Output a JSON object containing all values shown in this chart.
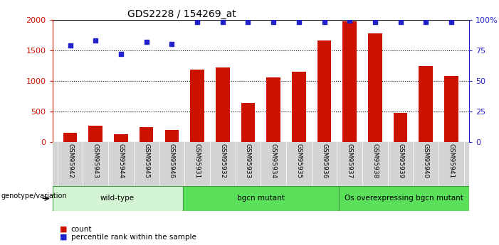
{
  "title": "GDS2228 / 154269_at",
  "samples": [
    "GSM95942",
    "GSM95943",
    "GSM95944",
    "GSM95945",
    "GSM95946",
    "GSM95931",
    "GSM95932",
    "GSM95933",
    "GSM95934",
    "GSM95935",
    "GSM95936",
    "GSM95937",
    "GSM95938",
    "GSM95939",
    "GSM95940",
    "GSM95941"
  ],
  "counts": [
    155,
    270,
    125,
    240,
    195,
    1185,
    1215,
    635,
    1060,
    1145,
    1660,
    1975,
    1780,
    475,
    1240,
    1080
  ],
  "percentiles": [
    79,
    83,
    72,
    82,
    80,
    98,
    98,
    98,
    98,
    98,
    98,
    99,
    98,
    98,
    98,
    98
  ],
  "groups": [
    {
      "label": "wild-type",
      "start": 0,
      "end": 5,
      "color": "#d4f5d4"
    },
    {
      "label": "bgcn mutant",
      "start": 5,
      "end": 11,
      "color": "#5ae05a"
    },
    {
      "label": "Os overexpressing bgcn mutant",
      "start": 11,
      "end": 16,
      "color": "#5ae05a"
    }
  ],
  "group_edge_color": "#40a040",
  "bar_color": "#cc1100",
  "dot_color": "#2222cc",
  "left_axis_color": "#cc1100",
  "right_axis_color": "#2222cc",
  "ylim_left": [
    0,
    2000
  ],
  "ylim_right": [
    0,
    100
  ],
  "yticks_left": [
    0,
    500,
    1000,
    1500,
    2000
  ],
  "yticks_right": [
    0,
    25,
    50,
    75,
    100
  ],
  "yticklabels_right": [
    "0",
    "25",
    "50",
    "75",
    "100%"
  ],
  "background_color": "#ffffff",
  "plot_bg": "#ffffff",
  "xlabel_area_color": "#d3d3d3",
  "genotype_label": "genotype/variation"
}
